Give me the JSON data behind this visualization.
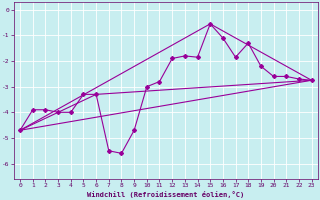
{
  "xlabel": "Windchill (Refroidissement éolien,°C)",
  "bg_color": "#c8eef0",
  "line_color": "#990099",
  "grid_color": "#ffffff",
  "xlim": [
    -0.5,
    23.5
  ],
  "ylim": [
    -6.6,
    0.3
  ],
  "yticks": [
    0,
    -1,
    -2,
    -3,
    -4,
    -5,
    -6
  ],
  "xticks": [
    0,
    1,
    2,
    3,
    4,
    5,
    6,
    7,
    8,
    9,
    10,
    11,
    12,
    13,
    14,
    15,
    16,
    17,
    18,
    19,
    20,
    21,
    22,
    23
  ],
  "series": [
    [
      0,
      -4.7
    ],
    [
      1,
      -3.9
    ],
    [
      2,
      -3.9
    ],
    [
      3,
      -4.0
    ],
    [
      4,
      -4.0
    ],
    [
      5,
      -3.3
    ],
    [
      6,
      -3.3
    ],
    [
      7,
      -5.5
    ],
    [
      8,
      -5.6
    ],
    [
      9,
      -4.7
    ],
    [
      10,
      -3.0
    ],
    [
      11,
      -2.8
    ],
    [
      12,
      -1.9
    ],
    [
      13,
      -1.8
    ],
    [
      14,
      -1.85
    ],
    [
      15,
      -0.55
    ],
    [
      16,
      -1.1
    ],
    [
      17,
      -1.85
    ],
    [
      18,
      -1.3
    ],
    [
      19,
      -2.2
    ],
    [
      20,
      -2.6
    ],
    [
      21,
      -2.6
    ],
    [
      22,
      -2.7
    ],
    [
      23,
      -2.75
    ]
  ],
  "line2": [
    [
      0,
      -4.7
    ],
    [
      23,
      -2.75
    ]
  ],
  "line3": [
    [
      0,
      -4.7
    ],
    [
      15,
      -0.55
    ],
    [
      23,
      -2.75
    ]
  ],
  "line4": [
    [
      0,
      -4.7
    ],
    [
      6,
      -3.3
    ],
    [
      23,
      -2.75
    ]
  ]
}
